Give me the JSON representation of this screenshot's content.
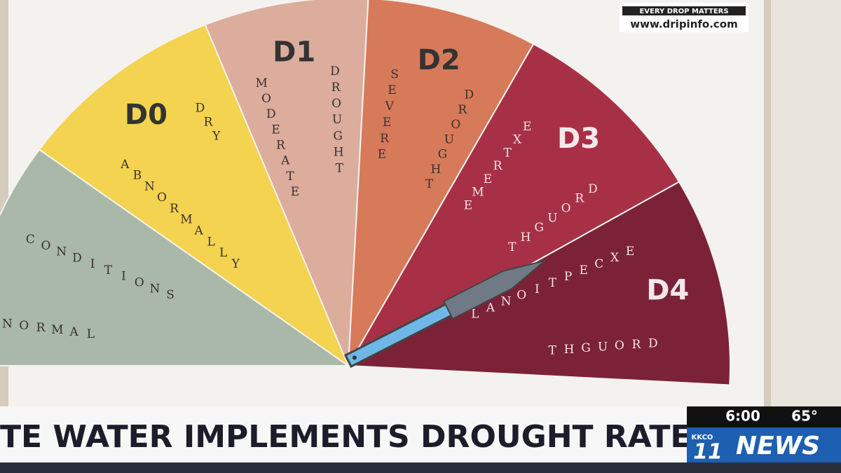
{
  "logo": {
    "tagline": "EVERY DROP MATTERS",
    "url": "www.dripinfo.com"
  },
  "gauge": {
    "sectors": [
      {
        "words": [
          "NORMAL",
          "CONDITIONS"
        ],
        "color": "#a9b8a8"
      },
      {
        "code": "D0",
        "words": [
          "ABNORMALLY",
          "DRY"
        ],
        "color": "#f3d34f"
      },
      {
        "code": "D1",
        "words": [
          "MODERATE",
          "DROUGHT"
        ],
        "color": "#dcac9c"
      },
      {
        "code": "D2",
        "words": [
          "SEVERE",
          "DROUGHT"
        ],
        "color": "#d77a5a"
      },
      {
        "code": "D3",
        "words": [
          "EXTREME",
          "DROUGHT"
        ],
        "color": "#a83046"
      },
      {
        "code": "D4",
        "words": [
          "EXCEPTIONAL",
          "DROUGHT"
        ],
        "color": "#7c2238"
      }
    ]
  },
  "chyron": {
    "headline": "TE WATER IMPLEMENTS DROUGHT RATES",
    "time": "6:00",
    "temperature": "65°",
    "station": {
      "call": "KKCO",
      "number": "11",
      "brand": "NEWS"
    }
  }
}
